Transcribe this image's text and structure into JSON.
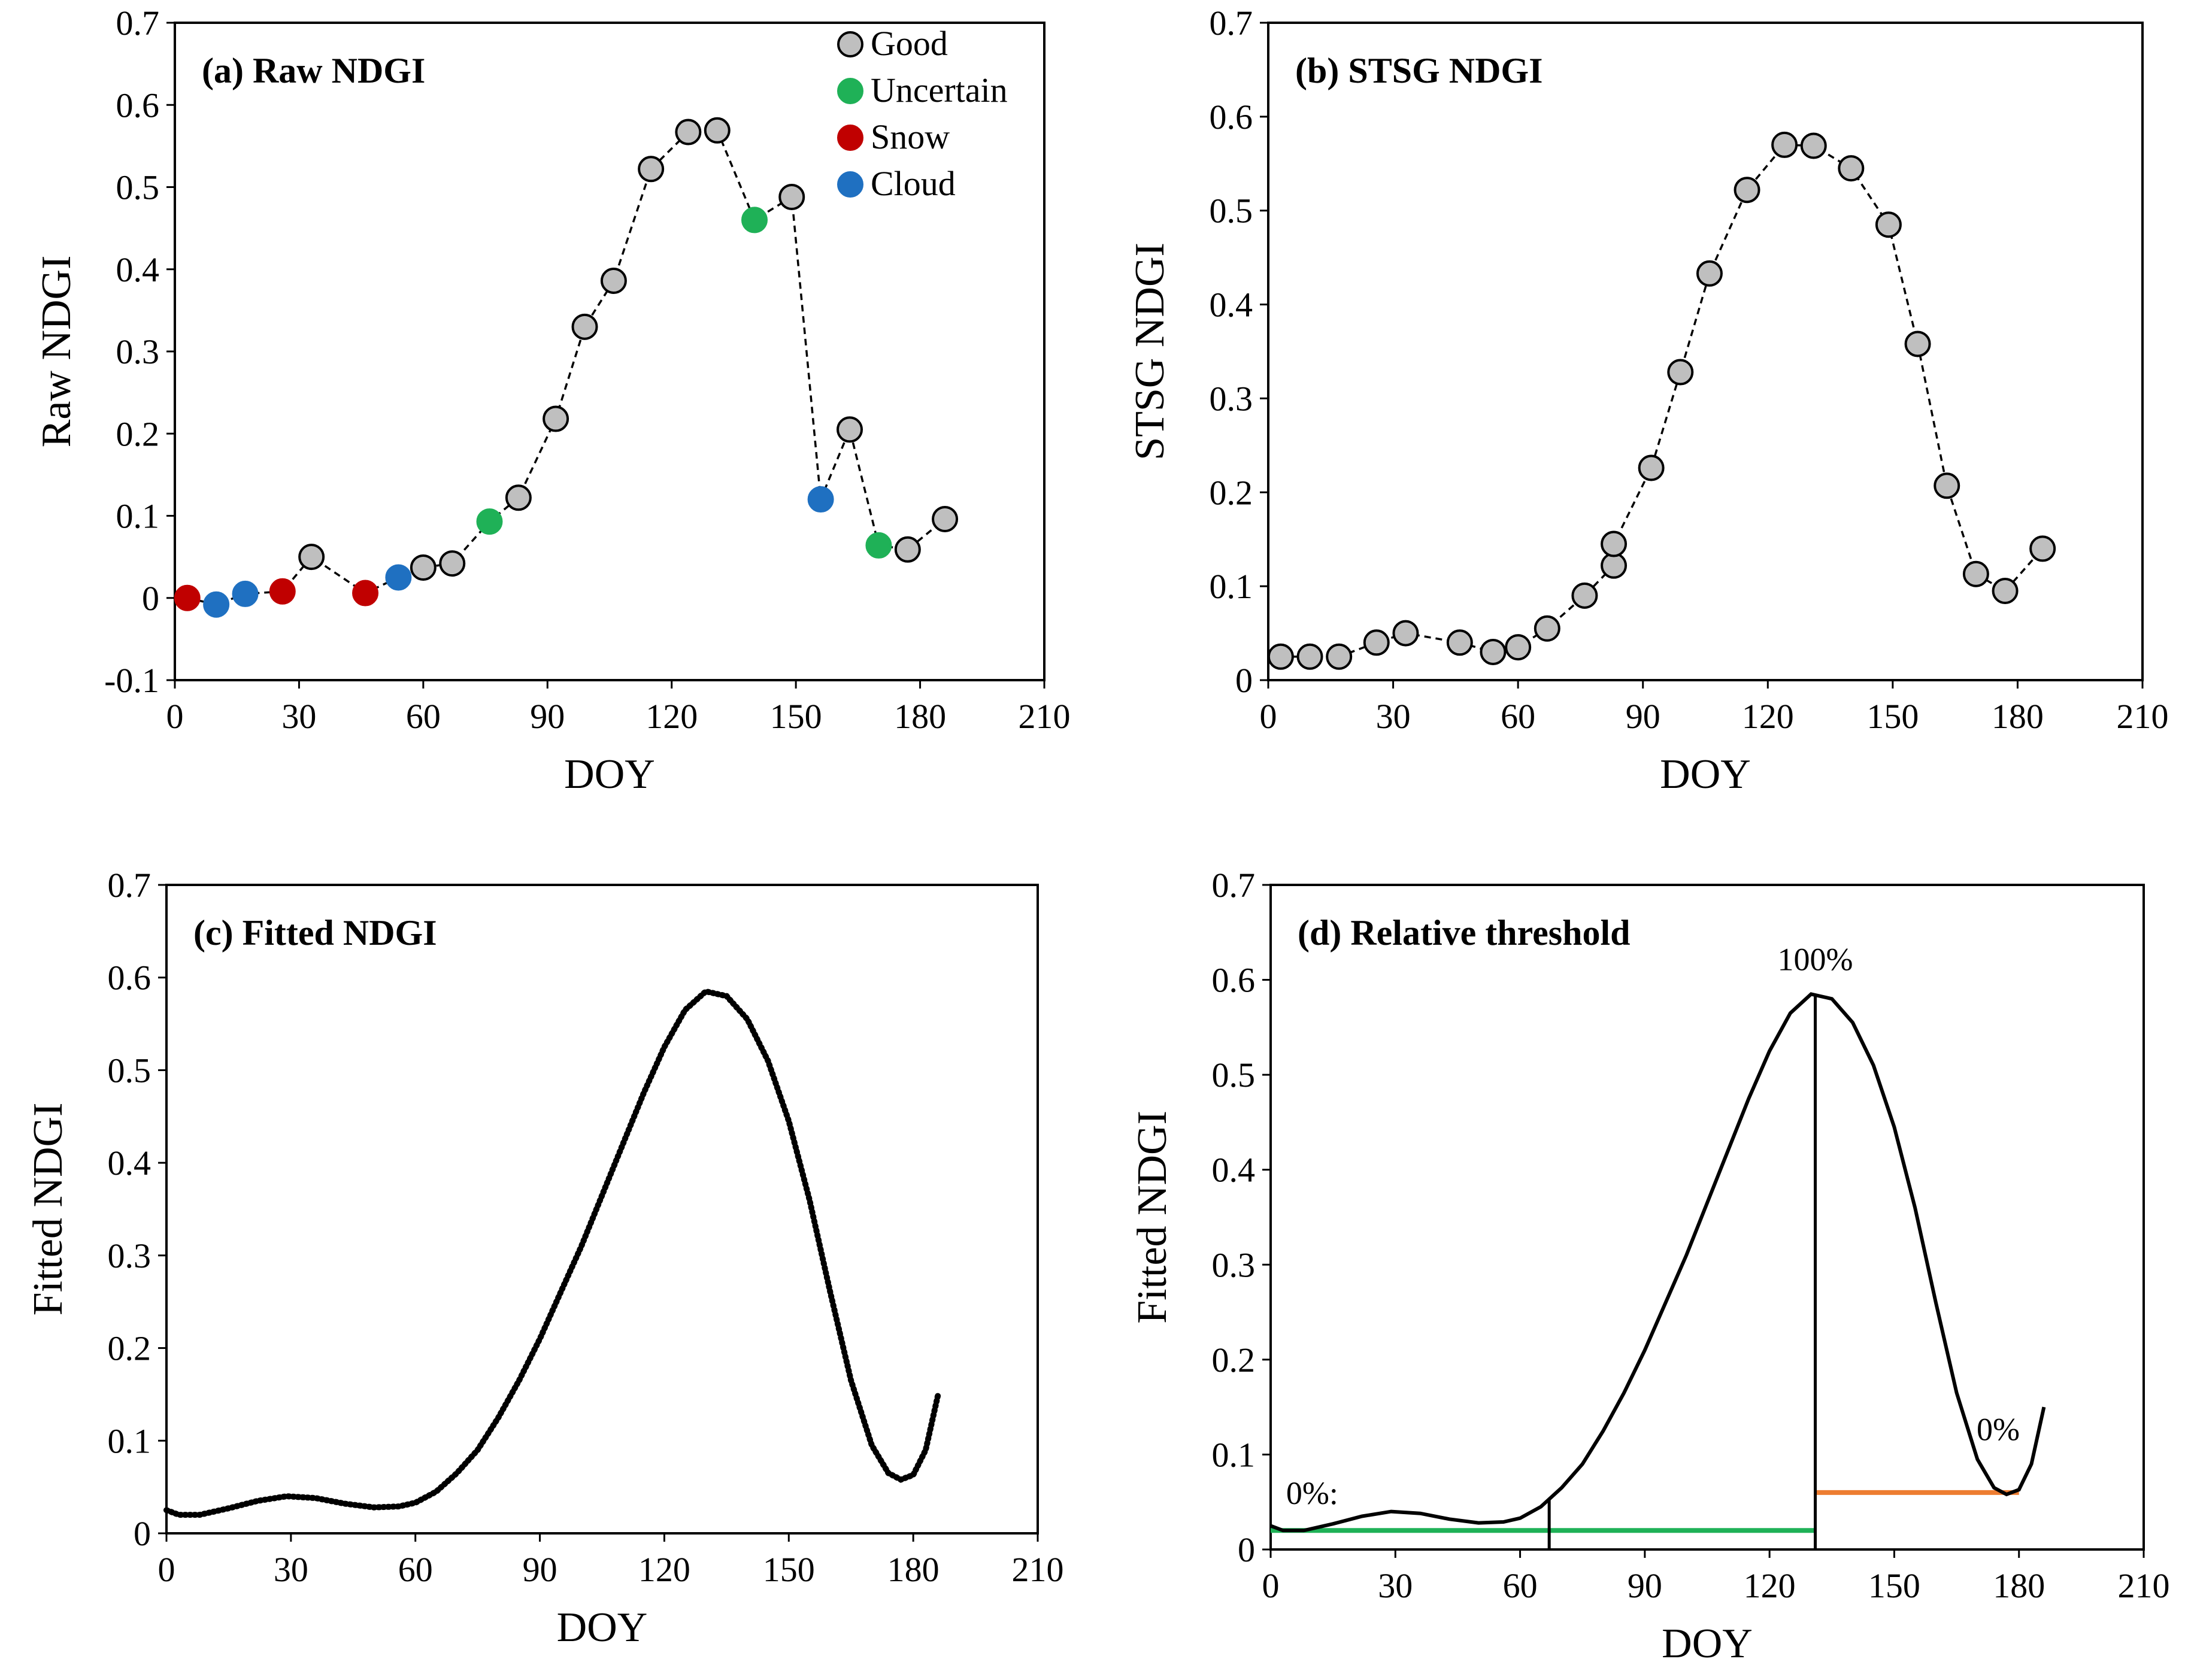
{
  "figure": {
    "colors": {
      "good": "#bfbfbf",
      "uncertain": "#1fb157",
      "snow": "#c00000",
      "cloud": "#1f70c1",
      "green_line": "#1fb157",
      "orange_line": "#ed7d31",
      "curve": "#000000"
    }
  },
  "chart_data": [
    {
      "id": "a",
      "type": "scatter",
      "title": "(a) Raw NDGI",
      "xlabel": "DOY",
      "ylabel": "Raw NDGI",
      "xlim": [
        0,
        210
      ],
      "ylim": [
        -0.1,
        0.7
      ],
      "xticks": [
        "0",
        "30",
        "60",
        "90",
        "120",
        "150",
        "180",
        "210"
      ],
      "yticks": [
        "-0.1",
        "0",
        "0.1",
        "0.2",
        "0.3",
        "0.4",
        "0.5",
        "0.6",
        "0.7"
      ],
      "legend": [
        {
          "label": "Good",
          "cls": "good"
        },
        {
          "label": "Uncertain",
          "cls": "uncertain"
        },
        {
          "label": "Snow",
          "cls": "snow"
        },
        {
          "label": "Cloud",
          "cls": "cloud"
        }
      ],
      "points": [
        {
          "x": 3,
          "y": 0.0,
          "cls": "snow"
        },
        {
          "x": 10,
          "y": -0.008,
          "cls": "cloud"
        },
        {
          "x": 17,
          "y": 0.005,
          "cls": "cloud"
        },
        {
          "x": 26,
          "y": 0.008,
          "cls": "snow"
        },
        {
          "x": 33,
          "y": 0.05,
          "cls": "good"
        },
        {
          "x": 46,
          "y": 0.006,
          "cls": "snow"
        },
        {
          "x": 54,
          "y": 0.025,
          "cls": "cloud"
        },
        {
          "x": 60,
          "y": 0.037,
          "cls": "good"
        },
        {
          "x": 67,
          "y": 0.042,
          "cls": "good"
        },
        {
          "x": 76,
          "y": 0.093,
          "cls": "uncertain"
        },
        {
          "x": 83,
          "y": 0.122,
          "cls": "good"
        },
        {
          "x": 92,
          "y": 0.218,
          "cls": "good"
        },
        {
          "x": 99,
          "y": 0.33,
          "cls": "good"
        },
        {
          "x": 106,
          "y": 0.386,
          "cls": "good"
        },
        {
          "x": 115,
          "y": 0.522,
          "cls": "good"
        },
        {
          "x": 124,
          "y": 0.567,
          "cls": "good"
        },
        {
          "x": 131,
          "y": 0.569,
          "cls": "good"
        },
        {
          "x": 140,
          "y": 0.46,
          "cls": "uncertain"
        },
        {
          "x": 149,
          "y": 0.488,
          "cls": "good"
        },
        {
          "x": 156,
          "y": 0.12,
          "cls": "cloud"
        },
        {
          "x": 163,
          "y": 0.205,
          "cls": "good"
        },
        {
          "x": 170,
          "y": 0.064,
          "cls": "uncertain"
        },
        {
          "x": 177,
          "y": 0.059,
          "cls": "good"
        },
        {
          "x": 186,
          "y": 0.096,
          "cls": "good"
        }
      ]
    },
    {
      "id": "b",
      "type": "scatter",
      "title": "(b) STSG NDGI",
      "xlabel": "DOY",
      "ylabel": "STSG NDGI",
      "xlim": [
        0,
        210
      ],
      "ylim": [
        0,
        0.7
      ],
      "xticks": [
        "0",
        "30",
        "60",
        "90",
        "120",
        "150",
        "180",
        "210"
      ],
      "yticks": [
        "0",
        "0.1",
        "0.2",
        "0.3",
        "0.4",
        "0.5",
        "0.6",
        "0.7"
      ],
      "points": [
        {
          "x": 3,
          "y": 0.025
        },
        {
          "x": 10,
          "y": 0.025
        },
        {
          "x": 17,
          "y": 0.025
        },
        {
          "x": 26,
          "y": 0.04
        },
        {
          "x": 33,
          "y": 0.05
        },
        {
          "x": 46,
          "y": 0.04
        },
        {
          "x": 54,
          "y": 0.03
        },
        {
          "x": 60,
          "y": 0.035
        },
        {
          "x": 67,
          "y": 0.055
        },
        {
          "x": 76,
          "y": 0.09
        },
        {
          "x": 83,
          "y": 0.122
        },
        {
          "x": 83,
          "y": 0.145
        },
        {
          "x": 92,
          "y": 0.226
        },
        {
          "x": 99,
          "y": 0.328
        },
        {
          "x": 106,
          "y": 0.433
        },
        {
          "x": 115,
          "y": 0.522
        },
        {
          "x": 124,
          "y": 0.57
        },
        {
          "x": 131,
          "y": 0.569
        },
        {
          "x": 140,
          "y": 0.545
        },
        {
          "x": 149,
          "y": 0.485
        },
        {
          "x": 156,
          "y": 0.358
        },
        {
          "x": 163,
          "y": 0.207
        },
        {
          "x": 170,
          "y": 0.113
        },
        {
          "x": 177,
          "y": 0.095
        },
        {
          "x": 186,
          "y": 0.14
        }
      ]
    },
    {
      "id": "c",
      "type": "line",
      "title": "(c) Fitted NDGI",
      "xlabel": "DOY",
      "ylabel": "Fitted  NDGI",
      "xlim": [
        0,
        210
      ],
      "ylim": [
        0,
        0.7
      ],
      "xticks": [
        "0",
        "30",
        "60",
        "90",
        "120",
        "150",
        "180",
        "210"
      ],
      "yticks": [
        "0",
        "0.1",
        "0.2",
        "0.3",
        "0.4",
        "0.5",
        "0.6",
        "0.7"
      ],
      "curve": [
        [
          0,
          0.025
        ],
        [
          3,
          0.02
        ],
        [
          8,
          0.02
        ],
        [
          15,
          0.027
        ],
        [
          22,
          0.035
        ],
        [
          29,
          0.04
        ],
        [
          36,
          0.038
        ],
        [
          43,
          0.032
        ],
        [
          50,
          0.028
        ],
        [
          56,
          0.029
        ],
        [
          60,
          0.033
        ],
        [
          65,
          0.045
        ],
        [
          70,
          0.065
        ],
        [
          75,
          0.09
        ],
        [
          80,
          0.125
        ],
        [
          85,
          0.165
        ],
        [
          90,
          0.21
        ],
        [
          95,
          0.26
        ],
        [
          100,
          0.31
        ],
        [
          105,
          0.365
        ],
        [
          110,
          0.42
        ],
        [
          115,
          0.475
        ],
        [
          120,
          0.525
        ],
        [
          125,
          0.565
        ],
        [
          130,
          0.585
        ],
        [
          135,
          0.58
        ],
        [
          140,
          0.555
        ],
        [
          145,
          0.51
        ],
        [
          150,
          0.445
        ],
        [
          155,
          0.36
        ],
        [
          160,
          0.26
        ],
        [
          165,
          0.165
        ],
        [
          170,
          0.095
        ],
        [
          174,
          0.065
        ],
        [
          177,
          0.058
        ],
        [
          180,
          0.063
        ],
        [
          183,
          0.09
        ],
        [
          186,
          0.15
        ]
      ]
    },
    {
      "id": "d",
      "type": "line",
      "title": "(d) Relative threshold",
      "xlabel": "DOY",
      "ylabel": "Fitted NDGI",
      "xlim": [
        0,
        210
      ],
      "ylim": [
        0,
        0.7
      ],
      "xticks": [
        "0",
        "30",
        "60",
        "90",
        "120",
        "150",
        "180",
        "210"
      ],
      "yticks": [
        "0",
        "0.1",
        "0.2",
        "0.3",
        "0.4",
        "0.5",
        "0.6",
        "0.7"
      ],
      "annotations": [
        {
          "text": "100%",
          "x": 131,
          "y": 0.61
        },
        {
          "text": "0%:",
          "x": 10,
          "y": 0.048
        },
        {
          "text": "0%",
          "x": 175,
          "y": 0.115
        }
      ],
      "vlines": [
        {
          "x": 67,
          "y0": 0.0,
          "y1": 0.052
        },
        {
          "x": 131,
          "y0": 0.0,
          "y1": 0.585
        }
      ],
      "hlines": [
        {
          "x0": 0,
          "x1": 131,
          "y": 0.02,
          "color": "green_line"
        },
        {
          "x0": 131,
          "x1": 180,
          "y": 0.06,
          "color": "orange_line"
        }
      ],
      "curve": [
        [
          0,
          0.025
        ],
        [
          3,
          0.02
        ],
        [
          8,
          0.02
        ],
        [
          15,
          0.027
        ],
        [
          22,
          0.035
        ],
        [
          29,
          0.04
        ],
        [
          36,
          0.038
        ],
        [
          43,
          0.032
        ],
        [
          50,
          0.028
        ],
        [
          56,
          0.029
        ],
        [
          60,
          0.033
        ],
        [
          65,
          0.045
        ],
        [
          70,
          0.065
        ],
        [
          75,
          0.09
        ],
        [
          80,
          0.125
        ],
        [
          85,
          0.165
        ],
        [
          90,
          0.21
        ],
        [
          95,
          0.26
        ],
        [
          100,
          0.31
        ],
        [
          105,
          0.365
        ],
        [
          110,
          0.42
        ],
        [
          115,
          0.475
        ],
        [
          120,
          0.525
        ],
        [
          125,
          0.565
        ],
        [
          130,
          0.585
        ],
        [
          135,
          0.58
        ],
        [
          140,
          0.555
        ],
        [
          145,
          0.51
        ],
        [
          150,
          0.445
        ],
        [
          155,
          0.36
        ],
        [
          160,
          0.26
        ],
        [
          165,
          0.165
        ],
        [
          170,
          0.095
        ],
        [
          174,
          0.065
        ],
        [
          177,
          0.058
        ],
        [
          180,
          0.063
        ],
        [
          183,
          0.09
        ],
        [
          186,
          0.15
        ]
      ]
    }
  ]
}
